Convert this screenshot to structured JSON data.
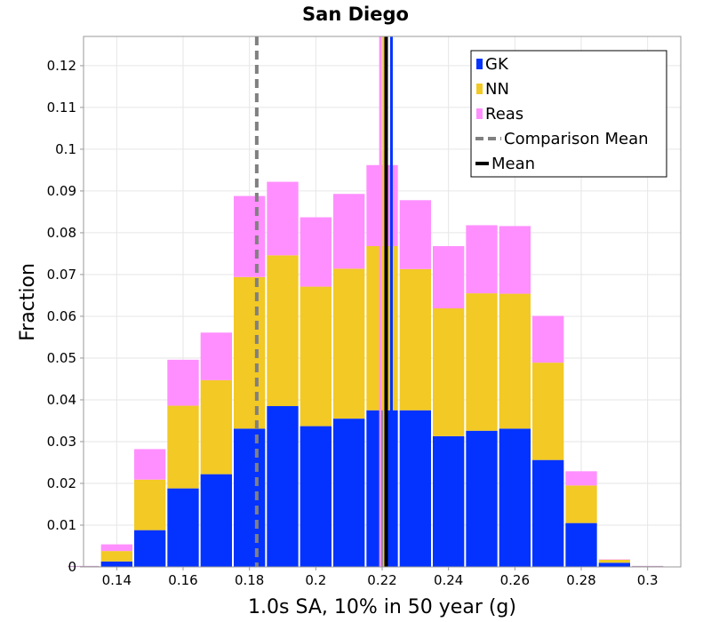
{
  "chart_data": {
    "type": "bar",
    "stacked": true,
    "title": "San Diego",
    "xlabel": "1.0s SA, 10% in 50 year (g)",
    "ylabel": "Fraction",
    "xlim": [
      0.13,
      0.31
    ],
    "ylim": [
      0,
      0.127
    ],
    "grid": true,
    "legend_position": "top-right",
    "x_ticks": [
      "0.14",
      "0.16",
      "0.18",
      "0.2",
      "0.22",
      "0.24",
      "0.26",
      "0.28",
      "0.3"
    ],
    "y_ticks": [
      "0",
      "0.01",
      "0.02",
      "0.03",
      "0.04",
      "0.05",
      "0.06",
      "0.07",
      "0.08",
      "0.09",
      "0.1",
      "0.11",
      "0.12"
    ],
    "bin_width": 0.01,
    "bin_centers": [
      0.13,
      0.14,
      0.15,
      0.16,
      0.17,
      0.18,
      0.19,
      0.2,
      0.21,
      0.22,
      0.23,
      0.24,
      0.25,
      0.26,
      0.27,
      0.28,
      0.29,
      0.3
    ],
    "series": [
      {
        "name": "GK",
        "color": "#0433ff",
        "values": [
          0.0,
          0.0013,
          0.0088,
          0.0188,
          0.0222,
          0.0331,
          0.0385,
          0.0337,
          0.0355,
          0.0375,
          0.0375,
          0.0313,
          0.0326,
          0.0331,
          0.0256,
          0.0105,
          0.001,
          0.0
        ]
      },
      {
        "name": "NN",
        "color": "#f2c925",
        "values": [
          0.0,
          0.0025,
          0.0121,
          0.0198,
          0.0225,
          0.0363,
          0.0361,
          0.0334,
          0.0359,
          0.0393,
          0.0338,
          0.0306,
          0.0329,
          0.0323,
          0.0233,
          0.009,
          0.0007,
          0.0
        ]
      },
      {
        "name": "Reas",
        "color": "#ff8fff",
        "values": [
          0.0,
          0.0016,
          0.0073,
          0.011,
          0.0114,
          0.0194,
          0.0176,
          0.0166,
          0.0179,
          0.0194,
          0.0165,
          0.0149,
          0.0163,
          0.0162,
          0.0112,
          0.0034,
          0.0001,
          0.0
        ]
      }
    ],
    "vertical_lines": [
      {
        "name": "Comparison Mean",
        "x": 0.1822,
        "color": "#808080",
        "style": "dashed"
      },
      {
        "name": "Mean",
        "x": 0.2212,
        "color": "#000000",
        "style": "solid"
      },
      {
        "name": "GK mean",
        "x": 0.2228,
        "color": "#0433ff",
        "style": "solid"
      },
      {
        "name": "NN mean",
        "x": 0.2205,
        "color": "#f2c925",
        "style": "solid"
      },
      {
        "name": "Reas mean",
        "x": 0.2195,
        "color": "#ff8fff",
        "style": "solid"
      }
    ],
    "legend": [
      {
        "label": "GK",
        "kind": "box",
        "color": "#0433ff"
      },
      {
        "label": "NN",
        "kind": "box",
        "color": "#f2c925"
      },
      {
        "label": "Reas",
        "kind": "box",
        "color": "#ff8fff"
      },
      {
        "label": "Comparison Mean",
        "kind": "dashed",
        "color": "#808080"
      },
      {
        "label": "Mean",
        "kind": "solid",
        "color": "#000000"
      }
    ]
  }
}
